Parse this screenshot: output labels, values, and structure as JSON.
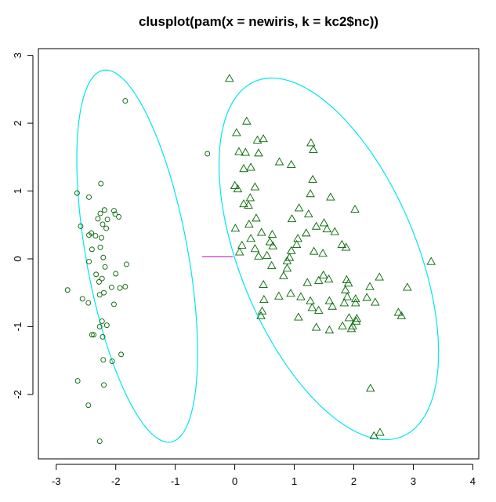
{
  "chart_data": {
    "type": "scatter",
    "title": "clusplot(pam(x = newiris, k = kc2$nc))",
    "xlabel": "",
    "ylabel": "",
    "xlim": [
      -3.3,
      4.1
    ],
    "ylim": [
      -2.95,
      3.1
    ],
    "x_ticks": [
      -3,
      -2,
      -1,
      0,
      1,
      2,
      3,
      4
    ],
    "y_ticks": [
      -2,
      -1,
      0,
      1,
      2,
      3
    ],
    "grid": false,
    "colors": {
      "points": "#006400",
      "ellipse": "#00e5ee",
      "connector": "#cc00cc",
      "axes": "#000000"
    },
    "ellipses": [
      {
        "cluster": 1,
        "center": [
          -1.64,
          0.04
        ],
        "semi_axes": [
          0.85,
          2.8
        ],
        "angle_deg": 12
      },
      {
        "cluster": 2,
        "center": [
          1.58,
          0.0
        ],
        "semi_axes": [
          1.45,
          2.9
        ],
        "angle_deg": 27
      }
    ],
    "connector": {
      "from": [
        -0.55,
        0.03
      ],
      "to": [
        -0.03,
        0.03
      ]
    },
    "series": [
      {
        "cluster": 1,
        "marker": "circle",
        "points": [
          [
            -1.84,
            2.33
          ],
          [
            -0.46,
            1.55
          ],
          [
            -2.65,
            0.97
          ],
          [
            -2.25,
            1.11
          ],
          [
            -2.45,
            0.91
          ],
          [
            -2.19,
            0.72
          ],
          [
            -2.03,
            0.71
          ],
          [
            -2.01,
            0.66
          ],
          [
            -2.26,
            0.67
          ],
          [
            -2.59,
            0.48
          ],
          [
            -2.3,
            0.59
          ],
          [
            -2.14,
            0.58
          ],
          [
            -2.22,
            0.51
          ],
          [
            -2.16,
            0.45
          ],
          [
            -1.95,
            0.62
          ],
          [
            -2.41,
            0.38
          ],
          [
            -2.34,
            0.34
          ],
          [
            -2.45,
            0.35
          ],
          [
            -2.24,
            0.31
          ],
          [
            -2.26,
            0.17
          ],
          [
            -2.4,
            0.14
          ],
          [
            -2.21,
            0.02
          ],
          [
            -2.45,
            -0.04
          ],
          [
            -1.82,
            -0.08
          ],
          [
            -2.18,
            -0.12
          ],
          [
            -2.33,
            -0.23
          ],
          [
            -2.0,
            -0.22
          ],
          [
            -2.23,
            -0.29
          ],
          [
            -2.07,
            -0.42
          ],
          [
            -2.81,
            -0.46
          ],
          [
            -1.93,
            -0.43
          ],
          [
            -2.28,
            -0.34
          ],
          [
            -1.84,
            -0.41
          ],
          [
            -2.56,
            -0.59
          ],
          [
            -2.2,
            -0.5
          ],
          [
            -2.27,
            -0.53
          ],
          [
            -2.46,
            -0.65
          ],
          [
            -2.03,
            -0.67
          ],
          [
            -2.23,
            -0.92
          ],
          [
            -2.15,
            -0.98
          ],
          [
            -2.27,
            -1.0
          ],
          [
            -2.4,
            -1.12
          ],
          [
            -2.37,
            -1.12
          ],
          [
            -2.22,
            -1.15
          ],
          [
            -1.91,
            -1.41
          ],
          [
            -2.21,
            -1.49
          ],
          [
            -2.06,
            -1.51
          ],
          [
            -2.64,
            -1.8
          ],
          [
            -2.2,
            -1.86
          ],
          [
            -2.46,
            -2.16
          ],
          [
            -2.27,
            -2.69
          ]
        ]
      },
      {
        "cluster": 2,
        "marker": "triangle",
        "points": [
          [
            -0.09,
            2.66
          ],
          [
            0.2,
            2.03
          ],
          [
            0.03,
            1.86
          ],
          [
            0.48,
            1.77
          ],
          [
            0.38,
            1.75
          ],
          [
            1.28,
            1.71
          ],
          [
            1.32,
            1.61
          ],
          [
            0.07,
            1.58
          ],
          [
            0.18,
            1.57
          ],
          [
            0.4,
            1.56
          ],
          [
            0.75,
            1.43
          ],
          [
            1.31,
            1.17
          ],
          [
            0.15,
            1.33
          ],
          [
            0.27,
            1.35
          ],
          [
            0.95,
            1.39
          ],
          [
            0.0,
            1.08
          ],
          [
            0.05,
            1.03
          ],
          [
            0.34,
            1.06
          ],
          [
            0.26,
            0.9
          ],
          [
            1.27,
            0.96
          ],
          [
            1.61,
            0.91
          ],
          [
            0.15,
            0.81
          ],
          [
            0.23,
            0.79
          ],
          [
            1.08,
            0.75
          ],
          [
            2.02,
            0.73
          ],
          [
            1.24,
            0.66
          ],
          [
            1.37,
            0.48
          ],
          [
            1.5,
            0.53
          ],
          [
            0.96,
            0.59
          ],
          [
            0.36,
            0.6
          ],
          [
            0.24,
            0.51
          ],
          [
            0.45,
            0.39
          ],
          [
            1.2,
            0.38
          ],
          [
            1.55,
            0.44
          ],
          [
            1.68,
            0.4
          ],
          [
            0.01,
            0.45
          ],
          [
            0.27,
            0.3
          ],
          [
            0.63,
            0.36
          ],
          [
            1.06,
            0.3
          ],
          [
            1.04,
            0.21
          ],
          [
            0.59,
            0.25
          ],
          [
            0.12,
            0.2
          ],
          [
            0.34,
            0.15
          ],
          [
            0.64,
            0.19
          ],
          [
            0.95,
            0.12
          ],
          [
            0.08,
            0.1
          ],
          [
            0.4,
            0.04
          ],
          [
            0.54,
            0.05
          ],
          [
            0.92,
            0.02
          ],
          [
            1.33,
            0.11
          ],
          [
            1.48,
            0.08
          ],
          [
            1.8,
            0.21
          ],
          [
            1.87,
            0.17
          ],
          [
            3.3,
            -0.04
          ],
          [
            0.88,
            -0.03
          ],
          [
            0.62,
            -0.1
          ],
          [
            0.88,
            -0.14
          ],
          [
            0.82,
            -0.25
          ],
          [
            1.49,
            -0.24
          ],
          [
            1.58,
            -0.3
          ],
          [
            2.43,
            -0.27
          ],
          [
            1.41,
            -0.32
          ],
          [
            1.88,
            -0.31
          ],
          [
            2.27,
            -0.41
          ],
          [
            2.9,
            -0.42
          ],
          [
            0.48,
            -0.38
          ],
          [
            1.22,
            -0.35
          ],
          [
            1.91,
            -0.36
          ],
          [
            0.74,
            -0.55
          ],
          [
            0.94,
            -0.51
          ],
          [
            2.22,
            -0.57
          ],
          [
            2.36,
            -0.64
          ],
          [
            1.86,
            -0.46
          ],
          [
            1.89,
            -0.56
          ],
          [
            1.11,
            -0.56
          ],
          [
            0.49,
            -0.6
          ],
          [
            1.59,
            -0.62
          ],
          [
            1.27,
            -0.62
          ],
          [
            2.03,
            -0.59
          ],
          [
            1.84,
            -0.65
          ],
          [
            1.64,
            -0.7
          ],
          [
            1.3,
            -0.72
          ],
          [
            1.41,
            -0.76
          ],
          [
            2.03,
            -0.65
          ],
          [
            0.46,
            -0.77
          ],
          [
            2.75,
            -0.79
          ],
          [
            2.8,
            -0.84
          ],
          [
            0.44,
            -0.84
          ],
          [
            1.07,
            -0.86
          ],
          [
            1.92,
            -0.87
          ],
          [
            2.05,
            -0.88
          ],
          [
            2.04,
            -0.92
          ],
          [
            1.81,
            -0.99
          ],
          [
            1.37,
            -1.01
          ],
          [
            1.59,
            -1.05
          ],
          [
            1.96,
            -1.03
          ],
          [
            1.98,
            -0.99
          ],
          [
            2.28,
            -1.91
          ],
          [
            2.44,
            -2.56
          ],
          [
            2.34,
            -2.61
          ]
        ]
      }
    ]
  }
}
